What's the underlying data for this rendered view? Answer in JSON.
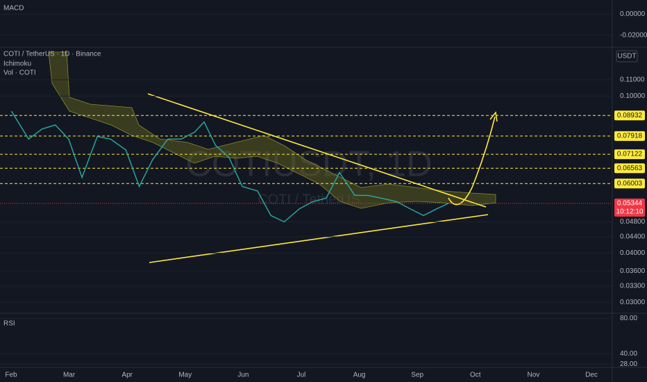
{
  "header": {
    "symbol": "COTI / TetherUS · 1D · Binance",
    "indicators": [
      "Ichimoku",
      "Vol · COTI"
    ],
    "currency": "USDT",
    "watermark": "COTIUSDT, 1D",
    "watermark_sub": "COTI / TetherUS"
  },
  "time_axis": {
    "categories": [
      "Feb",
      "Mar",
      "Apr",
      "May",
      "Jun",
      "Jul",
      "Aug",
      "Sep",
      "Oct",
      "Nov",
      "Dec"
    ]
  },
  "chart_data": [
    {
      "type": "line",
      "title": "MACD",
      "ylim": [
        -0.03,
        0.012
      ],
      "yticks": [
        {
          "value": 0,
          "label": "0.00000"
        },
        {
          "value": -0.02,
          "label": "-0.02000"
        }
      ]
    },
    {
      "type": "line",
      "log_scale": true,
      "xlim": [
        -6,
        315
      ],
      "ylim": [
        0.0285,
        0.133
      ],
      "yticks": [
        {
          "value": 0.11,
          "label": "0.11000"
        },
        {
          "value": 0.1,
          "label": "0.10000"
        },
        {
          "value": 0.048,
          "label": "0.04800"
        },
        {
          "value": 0.044,
          "label": "0.04400"
        },
        {
          "value": 0.04,
          "label": "0.04000"
        },
        {
          "value": 0.036,
          "label": "0.03600"
        },
        {
          "value": 0.033,
          "label": "0.03300"
        },
        {
          "value": 0.03,
          "label": "0.03000"
        }
      ],
      "x": [
        0,
        9,
        16,
        23,
        30,
        37,
        45,
        52,
        60,
        67,
        74,
        82,
        89,
        96,
        101,
        107,
        114,
        121,
        129,
        136,
        143,
        151,
        158,
        165,
        172,
        180,
        187,
        194,
        202,
        209,
        216,
        223,
        229
      ],
      "values": [
        0.0916,
        0.0778,
        0.0825,
        0.0845,
        0.0778,
        0.0622,
        0.079,
        0.0778,
        0.073,
        0.059,
        0.069,
        0.0778,
        0.0778,
        0.081,
        0.086,
        0.075,
        0.07,
        0.059,
        0.0575,
        0.0498,
        0.048,
        0.0518,
        0.054,
        0.0551,
        0.064,
        0.056,
        0.056,
        0.0551,
        0.054,
        0.0518,
        0.0498,
        0.0518,
        0.05344
      ],
      "color": "#26a69a",
      "levels": [
        0.08932,
        0.07918,
        0.07122,
        0.06563,
        0.06003
      ],
      "level_color": "#ffeb3b",
      "last_price": 0.05344,
      "last_price_color": "#f23645",
      "countdown": "10:12:10"
    },
    {
      "type": "line",
      "title": "RSI",
      "ylim": [
        26,
        82
      ],
      "yticks": [
        {
          "value": 80,
          "label": "80.00"
        },
        {
          "value": 40,
          "label": "40.00"
        },
        {
          "value": 28,
          "label": "28.00"
        }
      ]
    }
  ]
}
